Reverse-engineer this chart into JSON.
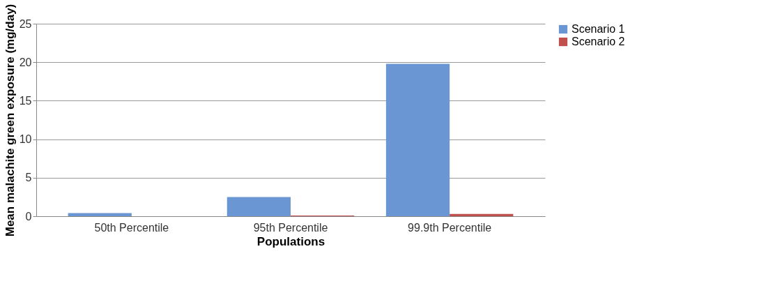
{
  "chart_data": {
    "type": "bar",
    "xlabel": "Populations",
    "ylabel": "Mean malachite green exposure (mg/day)",
    "categories": [
      "50th Percentile",
      "95th Percentile",
      "99.9th Percentile"
    ],
    "series": [
      {
        "name": "Scenario 1",
        "color": "#6a97d4",
        "values": [
          0.4,
          2.5,
          19.8
        ]
      },
      {
        "name": "Scenario 2",
        "color": "#c0504d",
        "values": [
          0,
          0.1,
          0.3
        ]
      }
    ],
    "ylim": [
      0,
      25
    ],
    "yticks": [
      0,
      5,
      10,
      15,
      20,
      25
    ],
    "grid": "y",
    "legend": "right"
  }
}
